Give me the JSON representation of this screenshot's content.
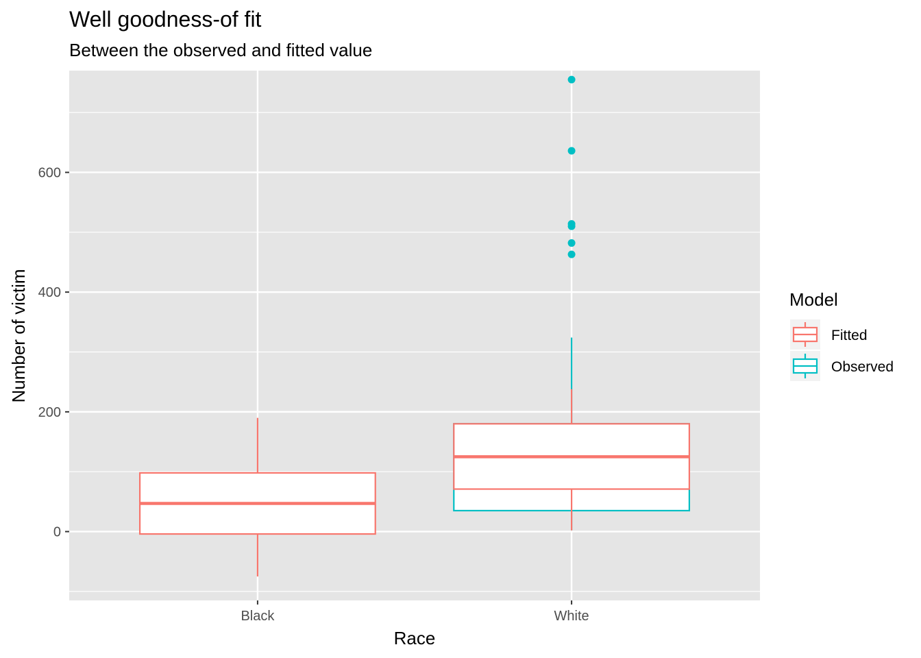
{
  "chart_data": {
    "type": "boxplot",
    "title": "Well goodness-of fit",
    "subtitle": "Between the observed and fitted value",
    "xlabel": "Race",
    "ylabel": "Number of victim",
    "categories": [
      "Black",
      "White"
    ],
    "ylim": [
      -115,
      770
    ],
    "yticks": [
      0,
      200,
      400,
      600
    ],
    "ytick_labels": [
      "0",
      "200",
      "400",
      "600"
    ],
    "grid": true,
    "legend": {
      "title": "Model",
      "position": "right"
    },
    "series": [
      {
        "name": "Fitted",
        "color": "#F8766D",
        "boxes": [
          {
            "category": "Black",
            "lower_whisker": -75,
            "q1": -4,
            "median": 47,
            "q3": 98,
            "upper_whisker": 190,
            "outliers": []
          },
          {
            "category": "White",
            "lower_whisker": 2,
            "q1": 71,
            "median": 125,
            "q3": 180,
            "upper_whisker": 238,
            "outliers": []
          }
        ]
      },
      {
        "name": "Observed",
        "color": "#00BFC4",
        "boxes": [
          {
            "category": "Black",
            "lower_whisker": 0,
            "q1": 0,
            "median": 0,
            "q3": 0,
            "upper_whisker": 0,
            "outliers": []
          },
          {
            "category": "White",
            "lower_whisker": 2,
            "q1": 35,
            "median": 125,
            "q3": 180,
            "upper_whisker": 324,
            "outliers": [
              463,
              482,
              510,
              514,
              636,
              755
            ]
          }
        ]
      }
    ]
  }
}
